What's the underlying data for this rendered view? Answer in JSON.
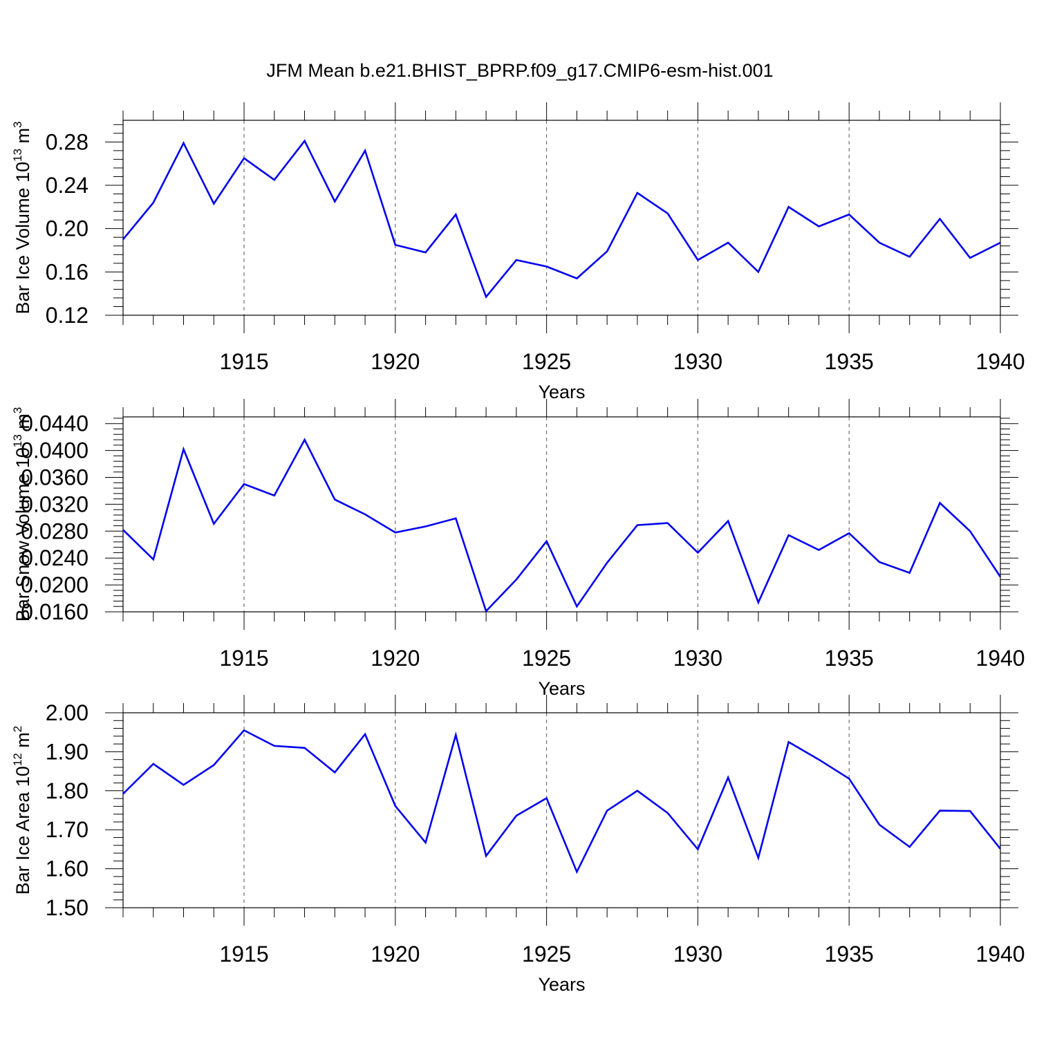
{
  "figure_title": "JFM Mean b.e21.BHIST_BPRP.f09_g17.CMIP6-esm-hist.001",
  "line_color": "#0000ee",
  "chart_data": [
    {
      "type": "line",
      "title": "",
      "xlabel": "Years",
      "ylabel": {
        "text": "Bar Ice Volume 10",
        "exp1": "13",
        "unit": " m",
        "exp2": "3"
      },
      "xlim": [
        1911,
        1940
      ],
      "ylim": [
        0.12,
        0.3
      ],
      "xticks": [
        1915,
        1920,
        1925,
        1930,
        1935,
        1940
      ],
      "xtick_labels": [
        "1915",
        "1920",
        "1925",
        "1930",
        "1935",
        "1940"
      ],
      "yticks": [
        0.12,
        0.16,
        0.2,
        0.24,
        0.28
      ],
      "ytick_labels": [
        "0.12",
        "0.16",
        "0.20",
        "0.24",
        "0.28"
      ],
      "grid": "dashed vertical at major x ticks",
      "x": [
        1911,
        1912,
        1913,
        1914,
        1915,
        1916,
        1917,
        1918,
        1919,
        1920,
        1921,
        1922,
        1923,
        1924,
        1925,
        1926,
        1927,
        1928,
        1929,
        1930,
        1931,
        1932,
        1933,
        1934,
        1935,
        1936,
        1937,
        1938,
        1939,
        1940
      ],
      "series": [
        {
          "values": [
            0.19,
            0.224,
            0.279,
            0.223,
            0.265,
            0.245,
            0.281,
            0.225,
            0.272,
            0.185,
            0.178,
            0.213,
            0.137,
            0.171,
            0.165,
            0.154,
            0.179,
            0.233,
            0.214,
            0.171,
            0.187,
            0.16,
            0.22,
            0.202,
            0.213,
            0.187,
            0.174,
            0.209,
            0.173,
            0.187
          ]
        }
      ]
    },
    {
      "type": "line",
      "title": "",
      "xlabel": "Years",
      "ylabel": {
        "text": "Bar Snow Volume 10",
        "exp1": "13",
        "unit": " m",
        "exp2": "3"
      },
      "xlim": [
        1911,
        1940
      ],
      "ylim": [
        0.016,
        0.045
      ],
      "xticks": [
        1915,
        1920,
        1925,
        1930,
        1935,
        1940
      ],
      "xtick_labels": [
        "1915",
        "1920",
        "1925",
        "1930",
        "1935",
        "1940"
      ],
      "yticks": [
        0.016,
        0.02,
        0.024,
        0.028,
        0.032,
        0.036,
        0.04,
        0.044
      ],
      "ytick_labels": [
        "0.0160",
        "0.0200",
        "0.0240",
        "0.0280",
        "0.0320",
        "0.0360",
        "0.0400",
        "0.0440"
      ],
      "grid": "dashed vertical at major x ticks",
      "x": [
        1911,
        1912,
        1913,
        1914,
        1915,
        1916,
        1917,
        1918,
        1919,
        1920,
        1921,
        1922,
        1923,
        1924,
        1925,
        1926,
        1927,
        1928,
        1929,
        1930,
        1931,
        1932,
        1933,
        1934,
        1935,
        1936,
        1937,
        1938,
        1939,
        1940
      ],
      "series": [
        {
          "values": [
            0.0282,
            0.0238,
            0.0402,
            0.0291,
            0.035,
            0.0333,
            0.0416,
            0.0327,
            0.0305,
            0.0278,
            0.0287,
            0.0299,
            0.0161,
            0.0208,
            0.0265,
            0.0168,
            0.0233,
            0.0289,
            0.0292,
            0.0248,
            0.0295,
            0.0174,
            0.0274,
            0.0252,
            0.0277,
            0.0234,
            0.0218,
            0.0322,
            0.028,
            0.0212
          ]
        }
      ]
    },
    {
      "type": "line",
      "title": "",
      "xlabel": "Years",
      "ylabel": {
        "text": "Bar Ice Area 10",
        "exp1": "12",
        "unit": " m",
        "exp2": "2"
      },
      "xlim": [
        1911,
        1940
      ],
      "ylim": [
        1.5,
        2.0
      ],
      "xticks": [
        1915,
        1920,
        1925,
        1930,
        1935,
        1940
      ],
      "xtick_labels": [
        "1915",
        "1920",
        "1925",
        "1930",
        "1935",
        "1940"
      ],
      "yticks": [
        1.5,
        1.6,
        1.7,
        1.8,
        1.9,
        2.0
      ],
      "ytick_labels": [
        "1.50",
        "1.60",
        "1.70",
        "1.80",
        "1.90",
        "2.00"
      ],
      "grid": "dashed vertical at major x ticks",
      "x": [
        1911,
        1912,
        1913,
        1914,
        1915,
        1916,
        1917,
        1918,
        1919,
        1920,
        1921,
        1922,
        1923,
        1924,
        1925,
        1926,
        1927,
        1928,
        1929,
        1930,
        1931,
        1932,
        1933,
        1934,
        1935,
        1936,
        1937,
        1938,
        1939,
        1940
      ],
      "series": [
        {
          "values": [
            1.792,
            1.869,
            1.815,
            1.866,
            1.955,
            1.915,
            1.91,
            1.847,
            1.945,
            1.761,
            1.667,
            1.943,
            1.633,
            1.736,
            1.781,
            1.592,
            1.749,
            1.8,
            1.743,
            1.65,
            1.834,
            1.628,
            1.925,
            1.88,
            1.831,
            1.713,
            1.656,
            1.749,
            1.748,
            1.651
          ]
        }
      ]
    }
  ]
}
